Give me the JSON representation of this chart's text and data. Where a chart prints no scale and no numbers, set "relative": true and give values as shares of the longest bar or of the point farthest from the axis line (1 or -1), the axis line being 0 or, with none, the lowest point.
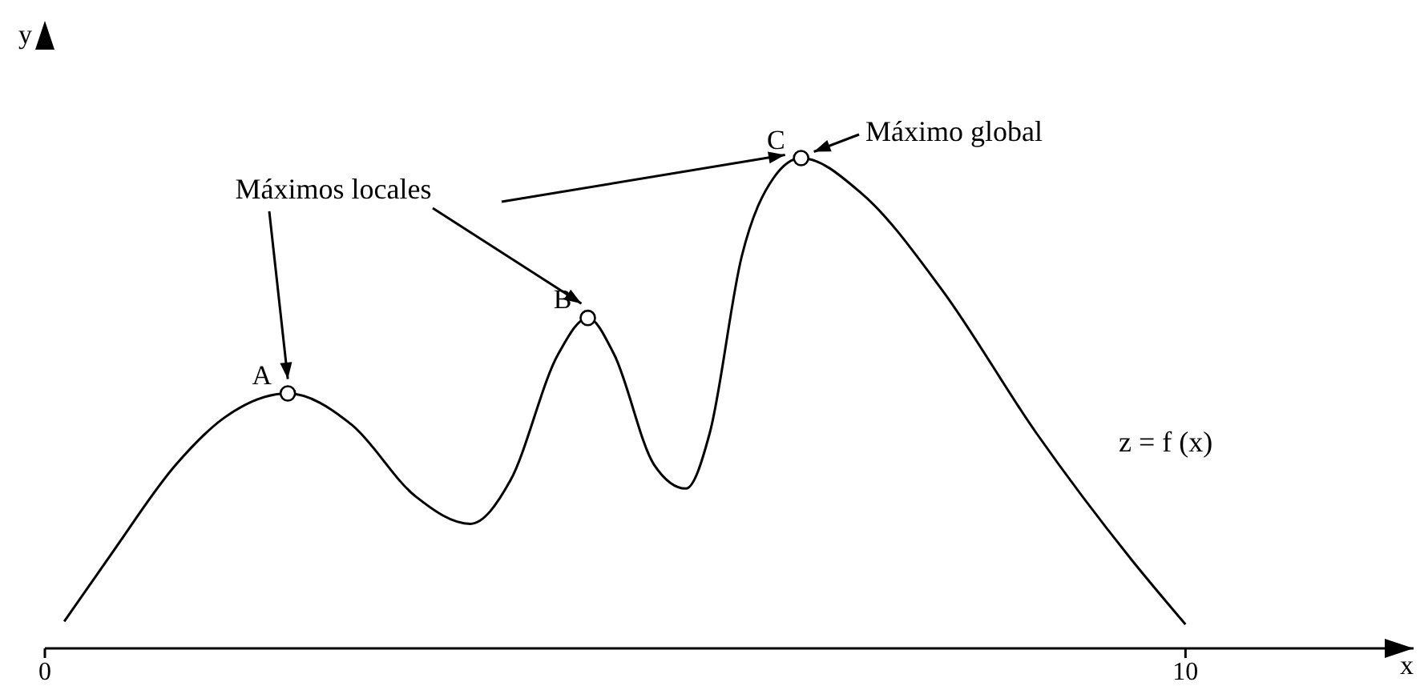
{
  "chart_data": {
    "type": "line",
    "relative": true,
    "xlabel": "x",
    "ylabel": "y",
    "xlim": [
      0,
      12
    ],
    "xticks": [
      0,
      10
    ],
    "series": [
      {
        "color": "#000000",
        "marker": "none",
        "x": [
          0.17,
          0.59,
          1.15,
          1.57,
          2.13,
          2.69,
          3.25,
          3.73,
          4.08,
          4.5,
          4.76,
          4.99,
          5.34,
          5.62,
          5.83,
          6.11,
          6.39,
          6.63,
          7.16,
          7.86,
          8.69,
          9.53,
          10
        ],
        "values": [
          0.055,
          0.195,
          0.375,
          0.47,
          0.52,
          0.456,
          0.31,
          0.254,
          0.342,
          0.6,
          0.674,
          0.6,
          0.375,
          0.326,
          0.44,
          0.8,
          0.96,
          1,
          0.928,
          0.733,
          0.44,
          0.18,
          0.049
        ]
      },
      {
        "type": "scatter",
        "color": "#000000",
        "marker": "circle",
        "x": [
          2.13,
          4.76,
          6.63
        ],
        "values": [
          0.52,
          0.674,
          1
        ]
      }
    ],
    "annotations": [
      {
        "text": "A",
        "x": 2.13,
        "y": 0.52
      },
      {
        "text": "B",
        "x": 4.76,
        "y": 0.674
      },
      {
        "text": "C",
        "x": 6.63,
        "y": 1
      },
      "Máximos locales",
      "Máximo global",
      "z = f (x)"
    ]
  }
}
